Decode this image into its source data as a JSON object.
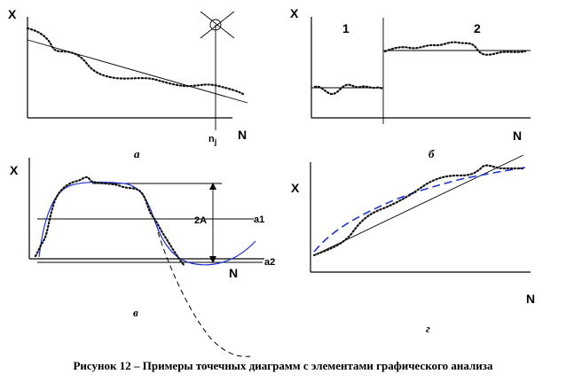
{
  "panels": {
    "a": {
      "y_label": "X",
      "x_label": "N",
      "marker_label": "n",
      "marker_sub": "j",
      "caption": "а"
    },
    "b": {
      "y_label": "X",
      "x_label": "N",
      "region1": "1",
      "region2": "2",
      "caption": "б"
    },
    "c": {
      "y_label": "X",
      "x_label": "N",
      "amp_label": "2A",
      "line1": "a1",
      "line2": "a2",
      "caption": "в"
    },
    "d": {
      "y_label": "X",
      "x_label": "N",
      "caption": "г"
    }
  },
  "caption": "Рисунок 12 – Примеры точечных диаграмм с элементами графического  анализа"
}
